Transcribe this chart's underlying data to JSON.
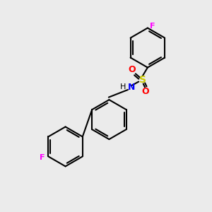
{
  "background_color": "#ebebeb",
  "bond_color": "#000000",
  "N_color": "#0000ff",
  "O_color": "#ff0000",
  "S_color": "#cccc00",
  "F_color": "#ff00ff",
  "lw": 1.5,
  "lw_double": 1.5,
  "figsize": [
    3.0,
    3.0
  ],
  "dpi": 100,
  "xlim": [
    0,
    10
  ],
  "ylim": [
    0,
    10
  ],
  "ring_r": 0.95
}
